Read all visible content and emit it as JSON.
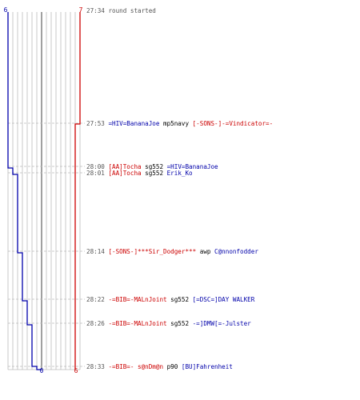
{
  "axis": {
    "top_left_label": "6",
    "top_right_label": "7",
    "bottom_mid_label": "0",
    "bottom_right_label": "6"
  },
  "colors": {
    "blue_team": "#0000aa",
    "red_team": "#cc0000",
    "grid": "#bbbbbb",
    "grid_bold": "#777777",
    "time_text": "#555555",
    "weapon_text": "#000000",
    "dash": "#bbbbbb"
  },
  "events": [
    {
      "time": "27:34",
      "parts": [
        {
          "text": "round started",
          "color": "#555555"
        }
      ]
    },
    {
      "time": "27:53",
      "parts": [
        {
          "text": "=HIV=BananaJoe",
          "color": "#0000aa"
        },
        {
          "text": " mp5navy ",
          "color": "#000000"
        },
        {
          "text": "[-SONS-]-=Vindicator=-",
          "color": "#cc0000"
        }
      ]
    },
    {
      "time": "28:00",
      "parts": [
        {
          "text": "[AA]Tocha",
          "color": "#cc0000"
        },
        {
          "text": " sg552 ",
          "color": "#000000"
        },
        {
          "text": "=HIV=BananaJoe",
          "color": "#0000aa"
        }
      ]
    },
    {
      "time": "28:01",
      "parts": [
        {
          "text": "[AA]Tocha",
          "color": "#cc0000"
        },
        {
          "text": " sg552 ",
          "color": "#000000"
        },
        {
          "text": "Erik_Ko",
          "color": "#0000aa"
        }
      ]
    },
    {
      "time": "28:14",
      "parts": [
        {
          "text": "[-SONS-]***Sir_Dodger***",
          "color": "#cc0000"
        },
        {
          "text": " awp ",
          "color": "#000000"
        },
        {
          "text": "C@nnonfodder",
          "color": "#0000aa"
        }
      ]
    },
    {
      "time": "28:22",
      "parts": [
        {
          "text": "-=BIB=-MALnJoint",
          "color": "#cc0000"
        },
        {
          "text": " sg552 ",
          "color": "#000000"
        },
        {
          "text": "[=DSC=]DAY WALKER",
          "color": "#0000aa"
        }
      ]
    },
    {
      "time": "28:26",
      "parts": [
        {
          "text": "-=BIB=-MALnJoint",
          "color": "#cc0000"
        },
        {
          "text": " sg552 ",
          "color": "#000000"
        },
        {
          "text": "-=]DMW[=-Julster",
          "color": "#0000aa"
        }
      ]
    },
    {
      "time": "28:33",
      "parts": [
        {
          "text": "-=BIB=- s@nDm@n",
          "color": "#cc0000"
        },
        {
          "text": " p90 ",
          "color": "#000000"
        },
        {
          "text": "[BU]Fahrenheit",
          "color": "#0000aa"
        }
      ]
    }
  ]
}
